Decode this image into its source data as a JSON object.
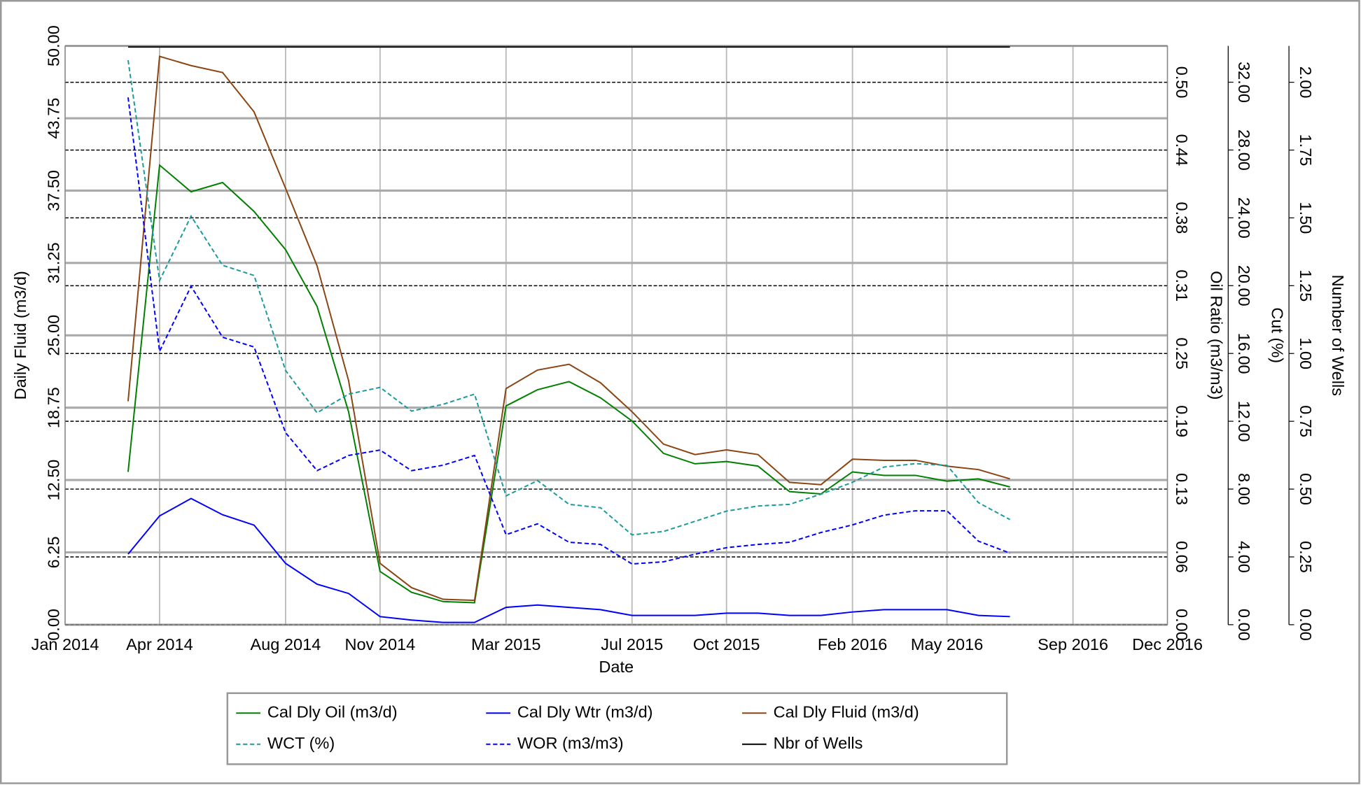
{
  "chart_data": {
    "type": "line",
    "xlabel": "Date",
    "ylabel": "Daily Fluid (m3/d)",
    "y2label": "Oil Ratio (m3/m3)",
    "y3label": "Cut (%)",
    "y4label": "Number of Wells",
    "x": [
      "2014-03",
      "2014-04",
      "2014-05",
      "2014-06",
      "2014-07",
      "2014-08",
      "2014-09",
      "2014-10",
      "2014-11",
      "2014-12",
      "2015-01",
      "2015-02",
      "2015-03",
      "2015-04",
      "2015-05",
      "2015-06",
      "2015-07",
      "2015-08",
      "2015-09",
      "2015-10",
      "2015-11",
      "2015-12",
      "2016-01",
      "2016-02",
      "2016-03",
      "2016-04",
      "2016-05",
      "2016-06",
      "2016-07"
    ],
    "xlim": [
      "2014-01",
      "2016-12"
    ],
    "xticks": [
      {
        "value": "2014-01",
        "label": "Jan 2014"
      },
      {
        "value": "2014-04",
        "label": "Apr 2014"
      },
      {
        "value": "2014-08",
        "label": "Aug 2014"
      },
      {
        "value": "2014-11",
        "label": "Nov 2014"
      },
      {
        "value": "2015-03",
        "label": "Mar 2015"
      },
      {
        "value": "2015-07",
        "label": "Jul 2015"
      },
      {
        "value": "2015-10",
        "label": "Oct 2015"
      },
      {
        "value": "2016-02",
        "label": "Feb 2016"
      },
      {
        "value": "2016-05",
        "label": "May 2016"
      },
      {
        "value": "2016-09",
        "label": "Sep 2016"
      },
      {
        "value": "2016-12",
        "label": "Dec 2016"
      }
    ],
    "ylim": [
      0,
      50
    ],
    "yticks": [
      {
        "value": 0,
        "label": "0.00"
      },
      {
        "value": 6.25,
        "label": "6.25"
      },
      {
        "value": 12.5,
        "label": "12.50"
      },
      {
        "value": 18.75,
        "label": "18.75"
      },
      {
        "value": 25,
        "label": "25.00"
      },
      {
        "value": 31.25,
        "label": "31.25"
      },
      {
        "value": 37.5,
        "label": "37.50"
      },
      {
        "value": 43.75,
        "label": "43.75"
      },
      {
        "value": 50,
        "label": "50.00"
      }
    ],
    "y2lim": [
      0,
      0.5335
    ],
    "y2ticks": [
      {
        "value": 0,
        "label": "0.00"
      },
      {
        "value": 0.0625,
        "label": "0.06"
      },
      {
        "value": 0.125,
        "label": "0.13"
      },
      {
        "value": 0.1875,
        "label": "0.19"
      },
      {
        "value": 0.25,
        "label": "0.25"
      },
      {
        "value": 0.3125,
        "label": "0.31"
      },
      {
        "value": 0.375,
        "label": "0.38"
      },
      {
        "value": 0.4375,
        "label": "0.44"
      },
      {
        "value": 0.5,
        "label": "0.50"
      }
    ],
    "y3lim": [
      0,
      34.14
    ],
    "y3ticks": [
      {
        "value": 0,
        "label": "0.00"
      },
      {
        "value": 4,
        "label": "4.00"
      },
      {
        "value": 8,
        "label": "8.00"
      },
      {
        "value": 12,
        "label": "12.00"
      },
      {
        "value": 16,
        "label": "16.00"
      },
      {
        "value": 20,
        "label": "20.00"
      },
      {
        "value": 24,
        "label": "24.00"
      },
      {
        "value": 28,
        "label": "28.00"
      },
      {
        "value": 32,
        "label": "32.00"
      }
    ],
    "y4lim": [
      0,
      2.134
    ],
    "y4ticks": [
      {
        "value": 0,
        "label": "0.00"
      },
      {
        "value": 0.25,
        "label": "0.25"
      },
      {
        "value": 0.5,
        "label": "0.50"
      },
      {
        "value": 0.75,
        "label": "0.75"
      },
      {
        "value": 1,
        "label": "1.00"
      },
      {
        "value": 1.25,
        "label": "1.25"
      },
      {
        "value": 1.5,
        "label": "1.50"
      },
      {
        "value": 1.75,
        "label": "1.75"
      },
      {
        "value": 2,
        "label": "2.00"
      }
    ],
    "grid": true,
    "legend": "bottom",
    "series": [
      {
        "name": "Cal Dly Oil (m3/d)",
        "color": "#008000",
        "axis": "y",
        "dashed": false,
        "values": [
          13.2,
          39.7,
          37.4,
          38.2,
          35.7,
          32.4,
          27.5,
          18.4,
          4.6,
          2.8,
          2.0,
          1.9,
          18.9,
          20.3,
          21.0,
          19.6,
          17.6,
          14.8,
          13.9,
          14.1,
          13.7,
          11.5,
          11.3,
          13.2,
          12.9,
          12.9,
          12.4,
          12.6,
          11.9
        ]
      },
      {
        "name": "Cal Dly Wtr (m3/d)",
        "color": "#0000ff",
        "axis": "y",
        "dashed": false,
        "values": [
          6.1,
          9.4,
          10.9,
          9.5,
          8.6,
          5.3,
          3.5,
          2.7,
          0.7,
          0.4,
          0.2,
          0.2,
          1.5,
          1.7,
          1.5,
          1.3,
          0.8,
          0.8,
          0.8,
          1.0,
          1.0,
          0.8,
          0.8,
          1.1,
          1.3,
          1.3,
          1.3,
          0.8,
          0.7
        ]
      },
      {
        "name": "Cal Dly Fluid (m3/d)",
        "color": "#8b4513",
        "axis": "y",
        "dashed": false,
        "values": [
          19.3,
          49.1,
          48.3,
          47.7,
          44.3,
          37.7,
          31.0,
          21.1,
          5.3,
          3.2,
          2.2,
          2.1,
          20.4,
          22.0,
          22.5,
          20.9,
          18.4,
          15.6,
          14.7,
          15.1,
          14.7,
          12.3,
          12.1,
          14.3,
          14.2,
          14.2,
          13.7,
          13.4,
          12.6
        ]
      },
      {
        "name": "WCT (%)",
        "color": "#1a9a9a",
        "axis": "y3",
        "dashed": true,
        "values": [
          33.3,
          20.3,
          24.1,
          21.2,
          20.6,
          15.0,
          12.5,
          13.6,
          14.0,
          12.6,
          13.0,
          13.6,
          7.6,
          8.5,
          7.1,
          6.9,
          5.3,
          5.5,
          6.1,
          6.7,
          7.0,
          7.1,
          7.7,
          8.4,
          9.3,
          9.5,
          9.4,
          7.2,
          6.2
        ]
      },
      {
        "name": "WOR (m3/m3)",
        "color": "#0000ff",
        "axis": "y2",
        "dashed": true,
        "values": [
          0.486,
          0.252,
          0.312,
          0.265,
          0.256,
          0.177,
          0.142,
          0.156,
          0.161,
          0.142,
          0.147,
          0.156,
          0.083,
          0.093,
          0.076,
          0.074,
          0.056,
          0.058,
          0.065,
          0.071,
          0.074,
          0.076,
          0.085,
          0.092,
          0.101,
          0.105,
          0.105,
          0.077,
          0.066
        ]
      },
      {
        "name": "Nbr of Wells",
        "color": "#000000",
        "axis": "y4",
        "dashed": false,
        "values": [
          2.13,
          2.13,
          2.13,
          2.13,
          2.13,
          2.13,
          2.13,
          2.13,
          2.13,
          2.13,
          2.13,
          2.13,
          2.13,
          2.13,
          2.13,
          2.13,
          2.13,
          2.13,
          2.13,
          2.13,
          2.13,
          2.13,
          2.13,
          2.13,
          2.13,
          2.13,
          2.13,
          2.13,
          2.13
        ]
      }
    ]
  }
}
